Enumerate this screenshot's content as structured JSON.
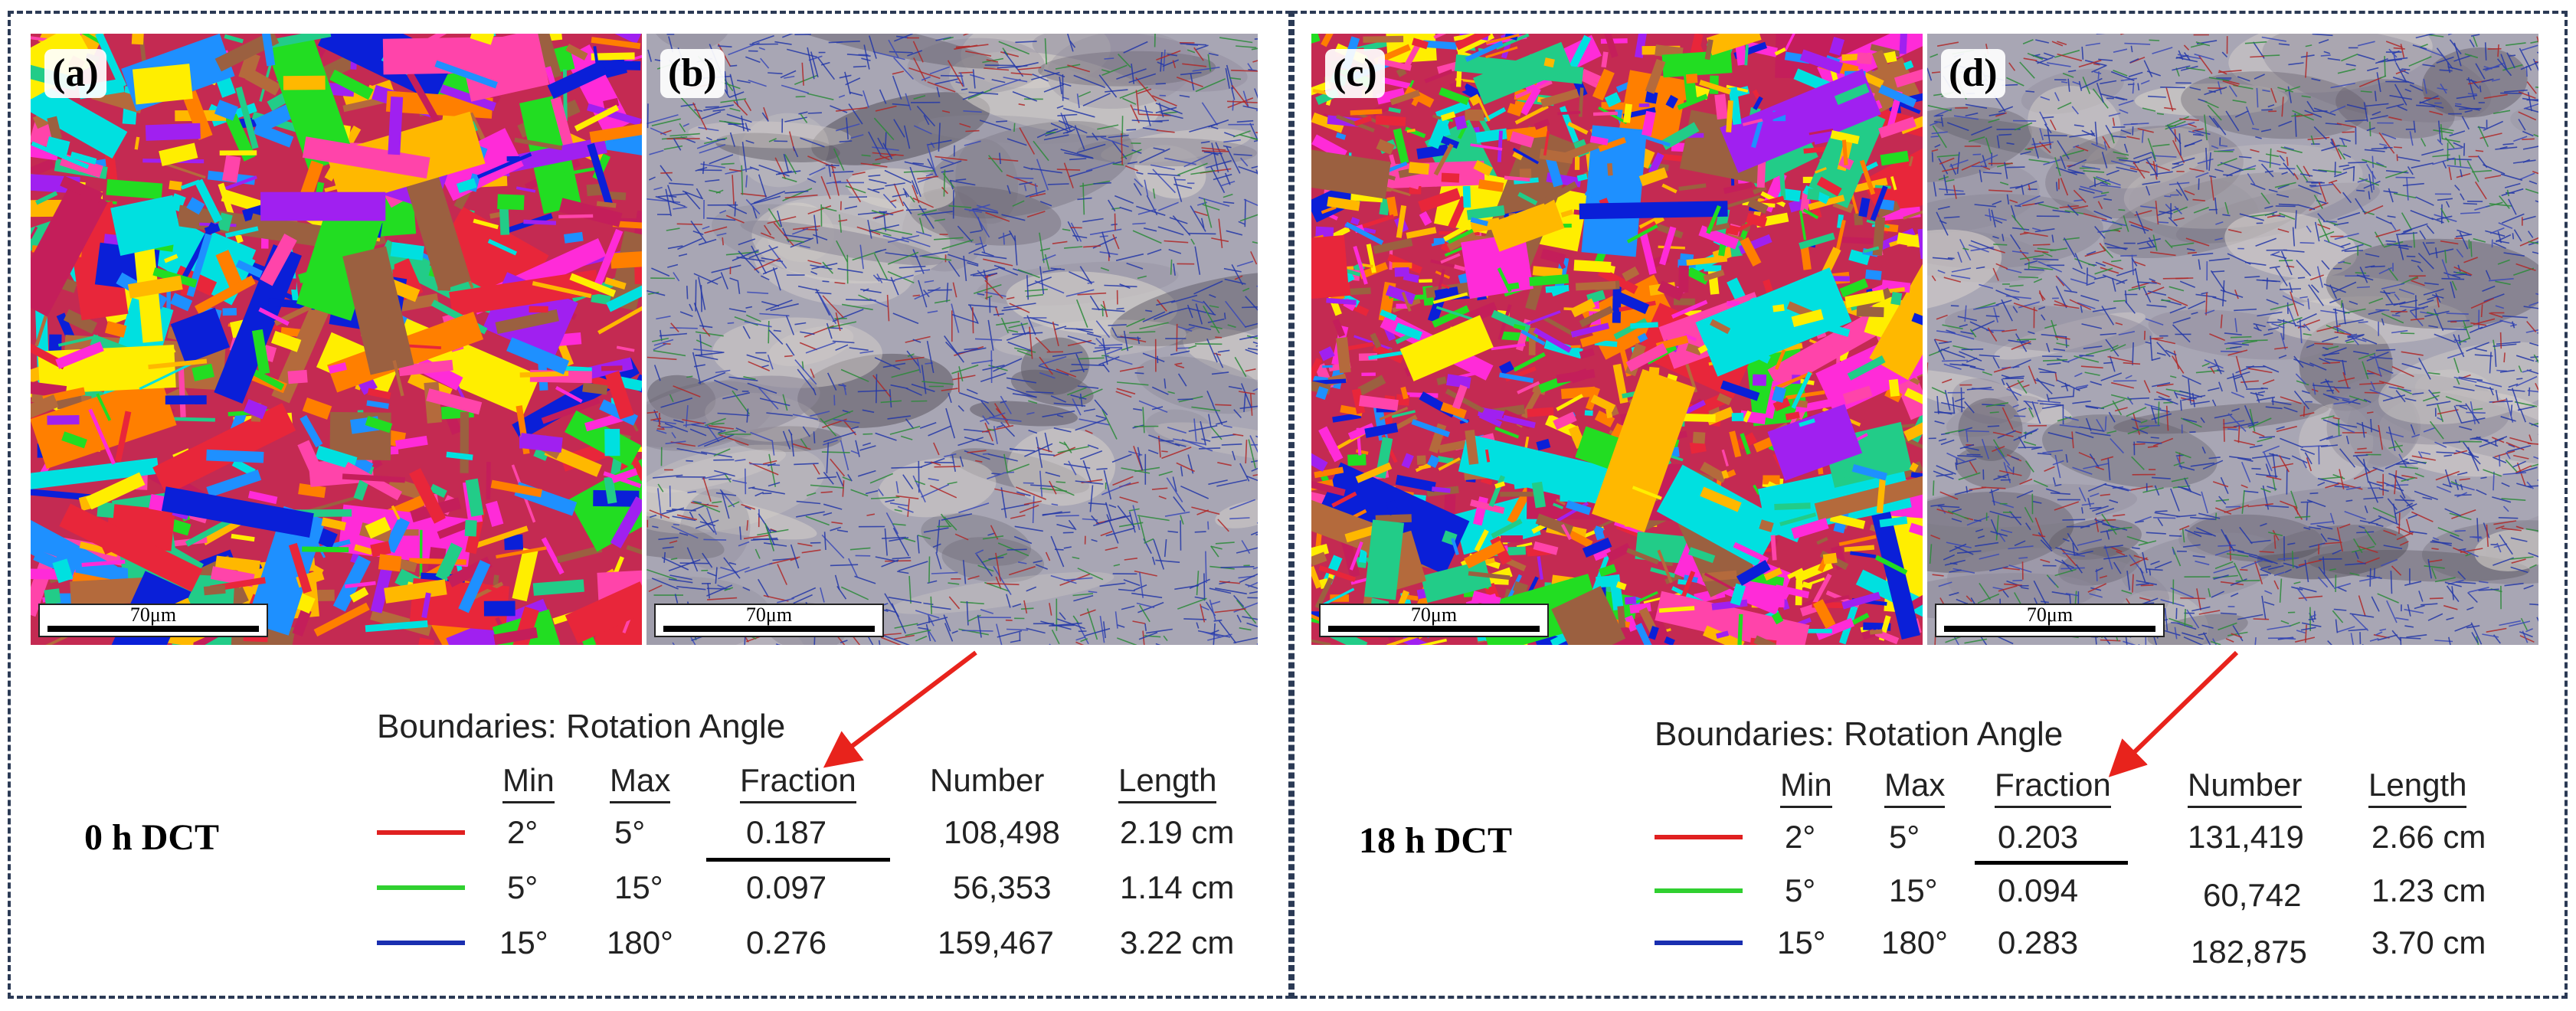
{
  "panels": [
    {
      "condition_label": "0 h DCT",
      "maps": [
        {
          "label": "(a)",
          "type": "grain-orientation-map",
          "scale_bar": "70μm"
        },
        {
          "label": "(b)",
          "type": "boundary-map",
          "scale_bar": "70μm"
        }
      ],
      "table": {
        "title": "Boundaries: Rotation Angle",
        "headers": [
          "Min",
          "Max",
          "Fraction",
          "Number",
          "Length"
        ],
        "rows": [
          {
            "color": "#e02020",
            "min": "2°",
            "max": "5°",
            "fraction": "0.187",
            "number": "108,498",
            "length": "2.19 cm"
          },
          {
            "color": "#30d030",
            "min": "5°",
            "max": "15°",
            "fraction": "0.097",
            "number": "56,353",
            "length": "1.14 cm"
          },
          {
            "color": "#1a2fb0",
            "min": "15°",
            "max": "180°",
            "fraction": "0.276",
            "number": "159,467",
            "length": "3.22 cm"
          }
        ]
      }
    },
    {
      "condition_label": "18 h DCT",
      "maps": [
        {
          "label": "(c)",
          "type": "grain-orientation-map",
          "scale_bar": "70μm"
        },
        {
          "label": "(d)",
          "type": "boundary-map",
          "scale_bar": "70μm"
        }
      ],
      "table": {
        "title": "Boundaries: Rotation Angle",
        "headers": [
          "Min",
          "Max",
          "Fraction",
          "Number",
          "Length"
        ],
        "rows": [
          {
            "color": "#e02020",
            "min": "2°",
            "max": "5°",
            "fraction": "0.203",
            "number": "131,419",
            "length": "2.66 cm"
          },
          {
            "color": "#30d030",
            "min": "5°",
            "max": "15°",
            "fraction": "0.094",
            "number": "60,742",
            "length": "1.23 cm"
          },
          {
            "color": "#1a2fb0",
            "min": "15°",
            "max": "180°",
            "fraction": "0.283",
            "number": "182,875",
            "length": "3.70 cm"
          }
        ]
      }
    }
  ],
  "colors": {
    "border": "#2b3a55",
    "arrow": "#e8231c",
    "grain_palette": [
      "#e8263a",
      "#c41e5a",
      "#ff2bd8",
      "#ff44aa",
      "#ffee00",
      "#ffb800",
      "#22dd22",
      "#22cc88",
      "#0a1fd8",
      "#1e90ff",
      "#00e0e0",
      "#b46a3c",
      "#9b6040",
      "#a020f0",
      "#ff7f00",
      "#ffffff"
    ]
  }
}
